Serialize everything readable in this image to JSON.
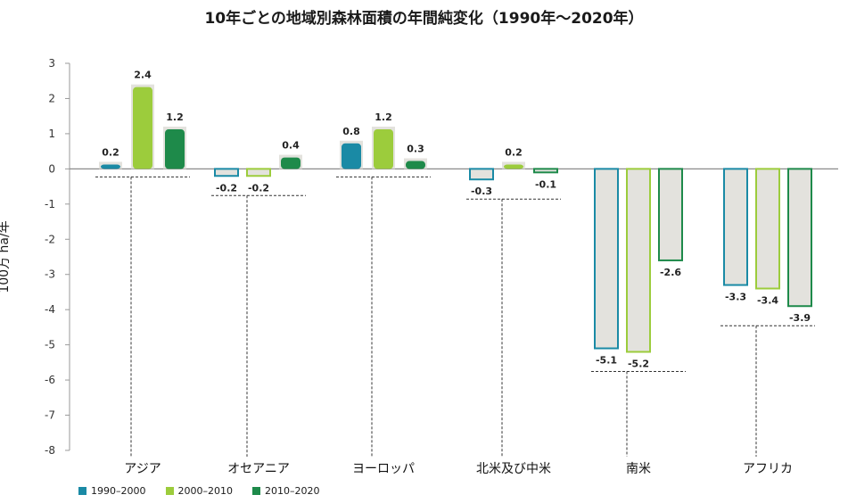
{
  "chart_data": {
    "type": "bar",
    "title": "10年ごとの地域別森林面積の年間純変化（1990年～2020年）",
    "ylabel": "100万 ha/年",
    "ylim": [
      -8,
      3
    ],
    "yticks": [
      3,
      2,
      1,
      0,
      -1,
      -2,
      -3,
      -4,
      -5,
      -6,
      -7,
      -8
    ],
    "categories": [
      "アジア",
      "オセアニア",
      "ヨーロッパ",
      "北米及び中米",
      "南米",
      "アフリカ"
    ],
    "series": [
      {
        "name": "1990–2000",
        "color": "#1a8aa5",
        "values": [
          0.2,
          -0.2,
          0.8,
          -0.3,
          -5.1,
          -3.3
        ]
      },
      {
        "name": "2000–2010",
        "color": "#9ccc3c",
        "values": [
          2.4,
          -0.2,
          1.2,
          0.2,
          -5.2,
          -3.4
        ]
      },
      {
        "name": "2010–2020",
        "color": "#1e8a4a",
        "values": [
          1.2,
          0.4,
          0.3,
          -0.1,
          -2.6,
          -3.9
        ]
      }
    ],
    "data_labels": [
      [
        "0.2",
        "-0.2",
        "0.8",
        "-0.3",
        "-5.1",
        "-3.3"
      ],
      [
        "2.4",
        "-0.2",
        "1.2",
        "0.2",
        "-5.2",
        "-3.4"
      ],
      [
        "1.2",
        "0.4",
        "0.3",
        "-0.1",
        "-2.6",
        "-3.9"
      ]
    ],
    "grid": false,
    "legend_position": "bottom-left",
    "bar_fill_color": "#e3e2dd"
  }
}
